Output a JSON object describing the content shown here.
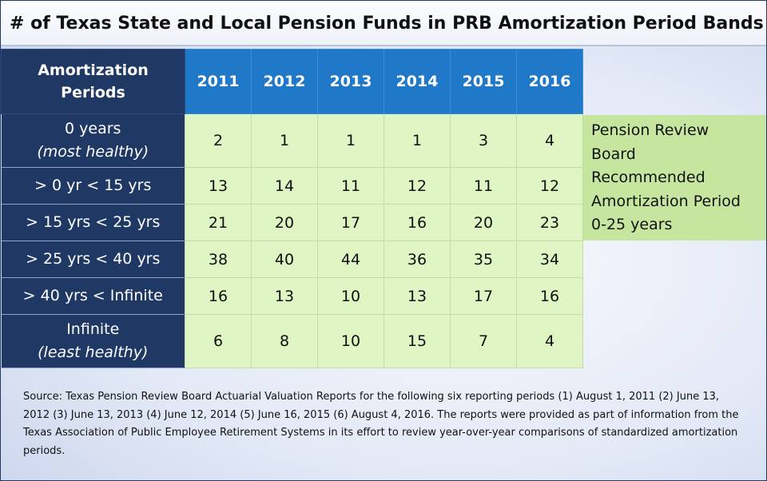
{
  "title": "# of Texas State and Local Pension Funds in PRB Amortization Period Bands",
  "chart_data": {
    "type": "table",
    "corner_header": [
      "Amortization",
      "Periods"
    ],
    "columns": [
      "2011",
      "2012",
      "2013",
      "2014",
      "2015",
      "2016"
    ],
    "rows": [
      {
        "label": "0 years",
        "sublabel": "(most healthy)",
        "values": [
          "2",
          "1",
          "1",
          "1",
          "3",
          "4"
        ]
      },
      {
        "label": "> 0 yr < 15 yrs",
        "sublabel": "",
        "values": [
          "13",
          "14",
          "11",
          "12",
          "11",
          "12"
        ]
      },
      {
        "label": "> 15 yrs < 25 yrs",
        "sublabel": "",
        "values": [
          "21",
          "20",
          "17",
          "16",
          "20",
          "23"
        ]
      },
      {
        "label": "> 25 yrs < 40 yrs",
        "sublabel": "",
        "values": [
          "38",
          "40",
          "44",
          "36",
          "35",
          "34"
        ]
      },
      {
        "label": "> 40 yrs < Infinite",
        "sublabel": "",
        "values": [
          "16",
          "13",
          "10",
          "13",
          "17",
          "16"
        ]
      },
      {
        "label": "Infinite",
        "sublabel": "(least healthy)",
        "values": [
          "6",
          "8",
          "10",
          "15",
          "7",
          "4"
        ]
      }
    ]
  },
  "note": [
    "Pension Review",
    "Board",
    "Recommended",
    "Amortization Period",
    "0-25 years"
  ],
  "source": "Source: Texas Pension Review Board Actuarial Valuation Reports for the following six reporting periods (1) August 1, 2011 (2) June 13, 2012 (3) June 13, 2013 (4) June 12, 2014 (5) June 16, 2015 (6) August 4, 2016. The reports were provided as part of information from the Texas Association of Public Employee Retirement Systems in its effort to review year-over-year comparisons of standardized amortization periods.",
  "colors": {
    "header_navy": "#1f3864",
    "header_blue": "#1f78c8",
    "cell_green": "#dff5c4",
    "note_green": "#c6e6a0"
  }
}
